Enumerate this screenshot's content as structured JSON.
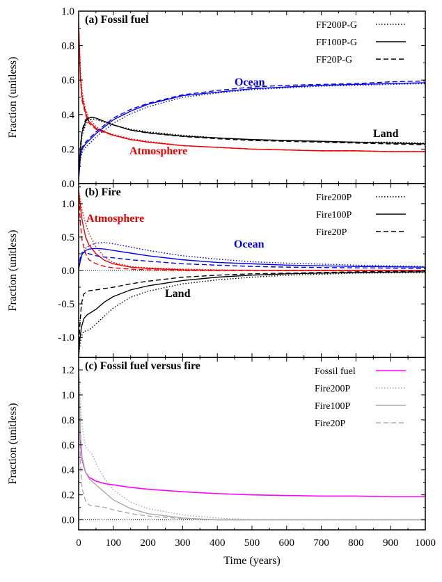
{
  "xaxis": {
    "label": "Time (years)",
    "range": [
      0,
      1000
    ],
    "ticks": [
      "0",
      "100",
      "200",
      "300",
      "400",
      "500",
      "600",
      "700",
      "800",
      "900",
      "1000"
    ]
  },
  "chart_data": [
    {
      "type": "line",
      "title": "(a) Fossil fuel",
      "ylabel": "Fraction (unitless)",
      "ylim": [
        0,
        1
      ],
      "yticks": [
        "0.0",
        "0.2",
        "0.4",
        "0.6",
        "0.8",
        "1.0"
      ],
      "legend": [
        "FF200P-G",
        "FF100P-G",
        "FF20P-G"
      ],
      "legend_position": "top-right",
      "annotations": [
        {
          "text": "Ocean",
          "color": "#0000ee",
          "x": 250,
          "y": 0.6
        },
        {
          "text": "Land",
          "color": "#000000",
          "x": 890,
          "y": 0.24
        },
        {
          "text": "Atmosphere",
          "color": "#ee0000",
          "x": 155,
          "y": 0.18
        }
      ],
      "series": [
        {
          "group": "Atmosphere",
          "variant": "FF100P-G",
          "color": "#ee0000",
          "x": [
            0,
            5,
            10,
            20,
            30,
            50,
            75,
            100,
            150,
            200,
            300,
            400,
            500,
            600,
            700,
            800,
            900,
            1000
          ],
          "y": [
            0.93,
            0.62,
            0.5,
            0.41,
            0.36,
            0.32,
            0.3,
            0.28,
            0.255,
            0.24,
            0.22,
            0.21,
            0.2,
            0.195,
            0.19,
            0.19,
            0.185,
            0.185
          ]
        },
        {
          "group": "Atmosphere",
          "variant": "FF200P-G",
          "color": "#ee0000",
          "x": [
            0,
            5,
            10,
            20,
            30,
            50,
            75,
            100,
            150,
            200,
            300,
            400,
            500,
            600,
            700,
            800,
            900,
            1000
          ],
          "y": [
            0.93,
            0.66,
            0.53,
            0.43,
            0.38,
            0.33,
            0.3,
            0.285,
            0.26,
            0.245,
            0.22,
            0.21,
            0.2,
            0.195,
            0.19,
            0.19,
            0.185,
            0.185
          ]
        },
        {
          "group": "Atmosphere",
          "variant": "FF20P-G",
          "color": "#ee0000",
          "x": [
            0,
            5,
            10,
            20,
            30,
            50,
            75,
            100,
            150,
            200,
            300,
            400,
            500,
            600,
            700,
            800,
            900,
            1000
          ],
          "y": [
            0.93,
            0.6,
            0.48,
            0.4,
            0.35,
            0.315,
            0.295,
            0.28,
            0.255,
            0.24,
            0.22,
            0.21,
            0.2,
            0.195,
            0.19,
            0.19,
            0.185,
            0.185
          ]
        },
        {
          "group": "Ocean",
          "variant": "FF100P-G",
          "color": "#0000ee",
          "x": [
            0,
            5,
            10,
            20,
            30,
            50,
            75,
            100,
            150,
            200,
            300,
            400,
            500,
            600,
            700,
            800,
            900,
            1000
          ],
          "y": [
            0.02,
            0.16,
            0.2,
            0.23,
            0.25,
            0.29,
            0.33,
            0.37,
            0.42,
            0.46,
            0.51,
            0.53,
            0.55,
            0.56,
            0.57,
            0.575,
            0.58,
            0.585
          ]
        },
        {
          "group": "Ocean",
          "variant": "FF200P-G",
          "color": "#0000ee",
          "x": [
            0,
            5,
            10,
            20,
            30,
            50,
            75,
            100,
            150,
            200,
            300,
            400,
            500,
            600,
            700,
            800,
            900,
            1000
          ],
          "y": [
            0.02,
            0.14,
            0.18,
            0.21,
            0.23,
            0.27,
            0.31,
            0.35,
            0.405,
            0.445,
            0.5,
            0.525,
            0.545,
            0.555,
            0.565,
            0.57,
            0.575,
            0.58
          ]
        },
        {
          "group": "Ocean",
          "variant": "FF20P-G",
          "color": "#0000ee",
          "x": [
            0,
            5,
            10,
            20,
            30,
            50,
            75,
            100,
            150,
            200,
            300,
            400,
            500,
            600,
            700,
            800,
            900,
            1000
          ],
          "y": [
            0.02,
            0.17,
            0.21,
            0.24,
            0.26,
            0.3,
            0.34,
            0.38,
            0.43,
            0.465,
            0.515,
            0.54,
            0.56,
            0.57,
            0.575,
            0.58,
            0.59,
            0.595
          ]
        },
        {
          "group": "Land",
          "variant": "FF100P-G",
          "color": "#000000",
          "x": [
            0,
            5,
            10,
            20,
            30,
            40,
            50,
            75,
            100,
            150,
            200,
            300,
            400,
            500,
            600,
            700,
            800,
            900,
            1000
          ],
          "y": [
            0.05,
            0.2,
            0.3,
            0.36,
            0.38,
            0.385,
            0.38,
            0.36,
            0.34,
            0.31,
            0.295,
            0.275,
            0.265,
            0.255,
            0.25,
            0.245,
            0.24,
            0.235,
            0.23
          ]
        },
        {
          "group": "Land",
          "variant": "FF200P-G",
          "color": "#000000",
          "x": [
            0,
            5,
            10,
            20,
            30,
            40,
            50,
            75,
            100,
            150,
            200,
            300,
            400,
            500,
            600,
            700,
            800,
            900,
            1000
          ],
          "y": [
            0.05,
            0.18,
            0.28,
            0.34,
            0.37,
            0.375,
            0.37,
            0.355,
            0.34,
            0.315,
            0.3,
            0.28,
            0.265,
            0.255,
            0.25,
            0.245,
            0.24,
            0.24,
            0.235
          ]
        },
        {
          "group": "Land",
          "variant": "FF20P-G",
          "color": "#000000",
          "x": [
            0,
            5,
            10,
            20,
            30,
            40,
            50,
            75,
            100,
            150,
            200,
            300,
            400,
            500,
            600,
            700,
            800,
            900,
            1000
          ],
          "y": [
            0.05,
            0.22,
            0.31,
            0.37,
            0.385,
            0.385,
            0.378,
            0.36,
            0.34,
            0.31,
            0.293,
            0.273,
            0.26,
            0.25,
            0.245,
            0.24,
            0.235,
            0.23,
            0.225
          ]
        }
      ]
    },
    {
      "type": "line",
      "title": "(b) Fire",
      "ylabel": "Fraction (unitless)",
      "ylim": [
        -1.3,
        1.3
      ],
      "yticks": [
        "-1.0",
        "-0.5",
        "0.0",
        "0.5",
        "1.0"
      ],
      "legend": [
        "Fire200P",
        "Fire100P",
        "Fire20P"
      ],
      "legend_position": "top-right",
      "annotations": [
        {
          "text": "Atmosphere",
          "color": "#ee0000",
          "x": 85,
          "y": 0.65
        },
        {
          "text": "Ocean",
          "color": "#0000ee",
          "x": 250,
          "y": 0.2
        },
        {
          "text": "Land",
          "color": "#000000",
          "x": 125,
          "y": -0.5
        }
      ],
      "series": [
        {
          "group": "Atmosphere",
          "variant": "Fire100P",
          "color": "#ee0000",
          "x": [
            0,
            5,
            10,
            20,
            30,
            50,
            75,
            100,
            150,
            200,
            300,
            400,
            600,
            1000
          ],
          "y": [
            1.2,
            0.95,
            0.75,
            0.5,
            0.38,
            0.25,
            0.15,
            0.1,
            0.05,
            0.03,
            0.01,
            0.005,
            0.0,
            0.0
          ]
        },
        {
          "group": "Atmosphere",
          "variant": "Fire200P",
          "color": "#ee0000",
          "x": [
            0,
            5,
            10,
            20,
            30,
            50,
            75,
            100,
            150,
            200,
            300,
            400,
            600,
            1000
          ],
          "y": [
            1.2,
            1.05,
            0.9,
            0.7,
            0.55,
            0.35,
            0.2,
            0.12,
            0.06,
            0.04,
            0.02,
            0.01,
            0.0,
            0.0
          ]
        },
        {
          "group": "Atmosphere",
          "variant": "Fire20P",
          "color": "#ee0000",
          "x": [
            0,
            5,
            10,
            20,
            30,
            50,
            75,
            100,
            150,
            200,
            300,
            400,
            600,
            1000
          ],
          "y": [
            1.2,
            0.7,
            0.45,
            0.25,
            0.16,
            0.1,
            0.06,
            0.04,
            0.02,
            0.01,
            0.0,
            0.0,
            0.0,
            0.0
          ]
        },
        {
          "group": "Ocean",
          "variant": "Fire100P",
          "color": "#0000ee",
          "x": [
            0,
            5,
            10,
            20,
            30,
            50,
            75,
            100,
            150,
            200,
            300,
            400,
            500,
            600,
            800,
            1000
          ],
          "y": [
            0.02,
            0.15,
            0.24,
            0.3,
            0.32,
            0.33,
            0.32,
            0.3,
            0.26,
            0.22,
            0.16,
            0.12,
            0.1,
            0.08,
            0.06,
            0.05
          ]
        },
        {
          "group": "Ocean",
          "variant": "Fire200P",
          "color": "#0000ee",
          "x": [
            0,
            5,
            10,
            20,
            30,
            50,
            75,
            100,
            150,
            200,
            300,
            400,
            500,
            600,
            800,
            1000
          ],
          "y": [
            0.02,
            0.15,
            0.26,
            0.33,
            0.37,
            0.41,
            0.42,
            0.4,
            0.35,
            0.3,
            0.22,
            0.17,
            0.13,
            0.11,
            0.08,
            0.06
          ]
        },
        {
          "group": "Ocean",
          "variant": "Fire20P",
          "color": "#0000ee",
          "x": [
            0,
            5,
            10,
            20,
            30,
            50,
            75,
            100,
            150,
            200,
            300,
            400,
            500,
            600,
            800,
            1000
          ],
          "y": [
            0.02,
            0.2,
            0.27,
            0.27,
            0.25,
            0.22,
            0.2,
            0.19,
            0.16,
            0.14,
            0.1,
            0.08,
            0.06,
            0.05,
            0.04,
            0.03
          ]
        },
        {
          "group": "Land",
          "variant": "Fire100P",
          "color": "#000000",
          "x": [
            0,
            3,
            8,
            15,
            25,
            35,
            50,
            75,
            100,
            150,
            200,
            300,
            400,
            500,
            600,
            800,
            1000
          ],
          "y": [
            -1.3,
            -1.05,
            -0.85,
            -0.72,
            -0.66,
            -0.63,
            -0.58,
            -0.47,
            -0.39,
            -0.29,
            -0.23,
            -0.15,
            -0.1,
            -0.07,
            -0.05,
            -0.03,
            -0.02
          ]
        },
        {
          "group": "Land",
          "variant": "Fire200P",
          "color": "#000000",
          "x": [
            0,
            3,
            8,
            15,
            25,
            35,
            50,
            75,
            100,
            150,
            200,
            300,
            400,
            500,
            600,
            800,
            1000
          ],
          "y": [
            -1.3,
            -1.15,
            -0.98,
            -0.91,
            -0.9,
            -0.87,
            -0.8,
            -0.68,
            -0.56,
            -0.4,
            -0.31,
            -0.2,
            -0.14,
            -0.1,
            -0.07,
            -0.04,
            -0.03
          ]
        },
        {
          "group": "Land",
          "variant": "Fire20P",
          "color": "#000000",
          "x": [
            0,
            3,
            8,
            15,
            25,
            35,
            50,
            75,
            100,
            150,
            200,
            300,
            400,
            500,
            600,
            800,
            1000
          ],
          "y": [
            -1.3,
            -0.85,
            -0.5,
            -0.35,
            -0.31,
            -0.3,
            -0.29,
            -0.27,
            -0.25,
            -0.2,
            -0.16,
            -0.1,
            -0.07,
            -0.05,
            -0.04,
            -0.02,
            -0.01
          ]
        }
      ]
    },
    {
      "type": "line",
      "title": "(c) Fossil fuel versus fire",
      "ylabel": "Fraction (unitless)",
      "ylim": [
        -0.08,
        1.3
      ],
      "yticks": [
        "0.0",
        "0.2",
        "0.4",
        "0.6",
        "0.8",
        "1.0",
        "1.2"
      ],
      "legend": [
        "Fossil fuel",
        "Fire200P",
        "Fire100P",
        "Fire20P"
      ],
      "legend_position": "top-right",
      "series": [
        {
          "name": "Fossil fuel",
          "color": "#ff00ff",
          "x": [
            0,
            5,
            10,
            20,
            30,
            50,
            75,
            100,
            150,
            200,
            300,
            400,
            500,
            600,
            700,
            800,
            900,
            1000
          ],
          "y": [
            1.22,
            0.62,
            0.48,
            0.38,
            0.34,
            0.31,
            0.29,
            0.28,
            0.26,
            0.245,
            0.225,
            0.21,
            0.2,
            0.195,
            0.19,
            0.19,
            0.185,
            0.185
          ]
        },
        {
          "name": "Fire200P",
          "color": "#aaaaaa",
          "x": [
            0,
            5,
            10,
            20,
            30,
            40,
            50,
            75,
            100,
            150,
            200,
            300,
            400,
            500,
            600,
            800,
            1000
          ],
          "y": [
            1.22,
            0.95,
            0.75,
            0.58,
            0.55,
            0.52,
            0.45,
            0.33,
            0.24,
            0.14,
            0.09,
            0.04,
            0.015,
            0.0,
            0.0,
            0.0,
            0.0
          ]
        },
        {
          "name": "Fire100P",
          "color": "#aaaaaa",
          "x": [
            0,
            5,
            10,
            20,
            30,
            50,
            75,
            100,
            150,
            200,
            300,
            400,
            500,
            600,
            800,
            1000
          ],
          "y": [
            1.22,
            0.7,
            0.5,
            0.38,
            0.33,
            0.28,
            0.22,
            0.16,
            0.09,
            0.05,
            0.015,
            0.0,
            0.0,
            0.0,
            0.0,
            0.0
          ]
        },
        {
          "name": "Fire20P",
          "color": "#aaaaaa",
          "x": [
            0,
            5,
            10,
            20,
            30,
            40,
            50,
            75,
            100,
            150,
            200,
            300,
            400,
            500,
            600,
            800,
            1000
          ],
          "y": [
            1.22,
            0.45,
            0.25,
            0.15,
            0.12,
            0.11,
            0.11,
            0.1,
            0.08,
            0.05,
            0.03,
            0.01,
            0.0,
            0.0,
            0.0,
            0.0,
            0.0
          ]
        }
      ]
    }
  ]
}
